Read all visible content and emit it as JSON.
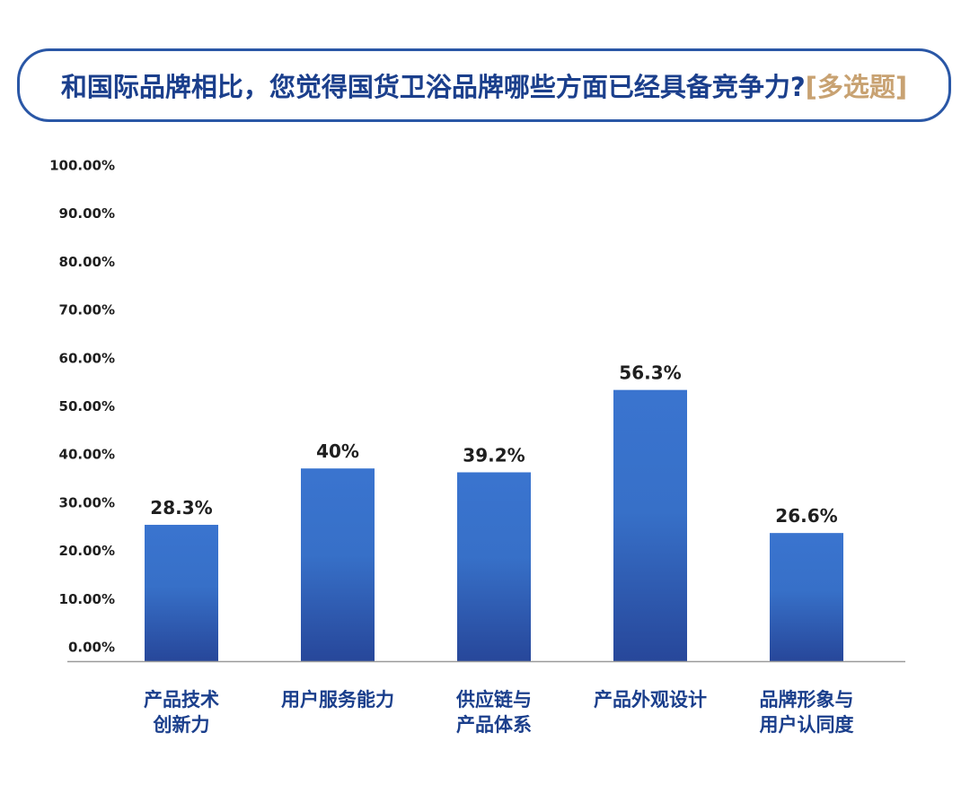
{
  "title": {
    "main": "和国际品牌相比，您觉得国货卫浴品牌哪些方面已经具备竞争力?",
    "tag": "[多选题]"
  },
  "colors": {
    "bar_top": "#3a74cf",
    "bar_bottom": "#27479a",
    "title_text": "#1b3f8c",
    "title_border": "#2a57a6",
    "tag_text": "#c8a272",
    "axis_line": "#9a9a9a"
  },
  "chart_data": {
    "type": "bar",
    "categories": [
      [
        "产品技术",
        "创新力"
      ],
      [
        "用户服务能力"
      ],
      [
        "供应链与",
        "产品体系"
      ],
      [
        "产品外观设计"
      ],
      [
        "品牌形象与",
        "用户认同度"
      ]
    ],
    "values": [
      28.3,
      40,
      39.2,
      56.3,
      26.6
    ],
    "value_labels": [
      "28.3%",
      "40%",
      "39.2%",
      "56.3%",
      "26.6%"
    ],
    "ylim": [
      0,
      100
    ],
    "yticks": [
      0,
      10,
      20,
      30,
      40,
      50,
      60,
      70,
      80,
      90,
      100
    ],
    "ytick_labels": [
      "0.00%",
      "10.00%",
      "20.00%",
      "30.00%",
      "40.00%",
      "50.00%",
      "60.00%",
      "70.00%",
      "80.00%",
      "90.00%",
      "100.00%"
    ],
    "grid": false,
    "legend": "none"
  }
}
